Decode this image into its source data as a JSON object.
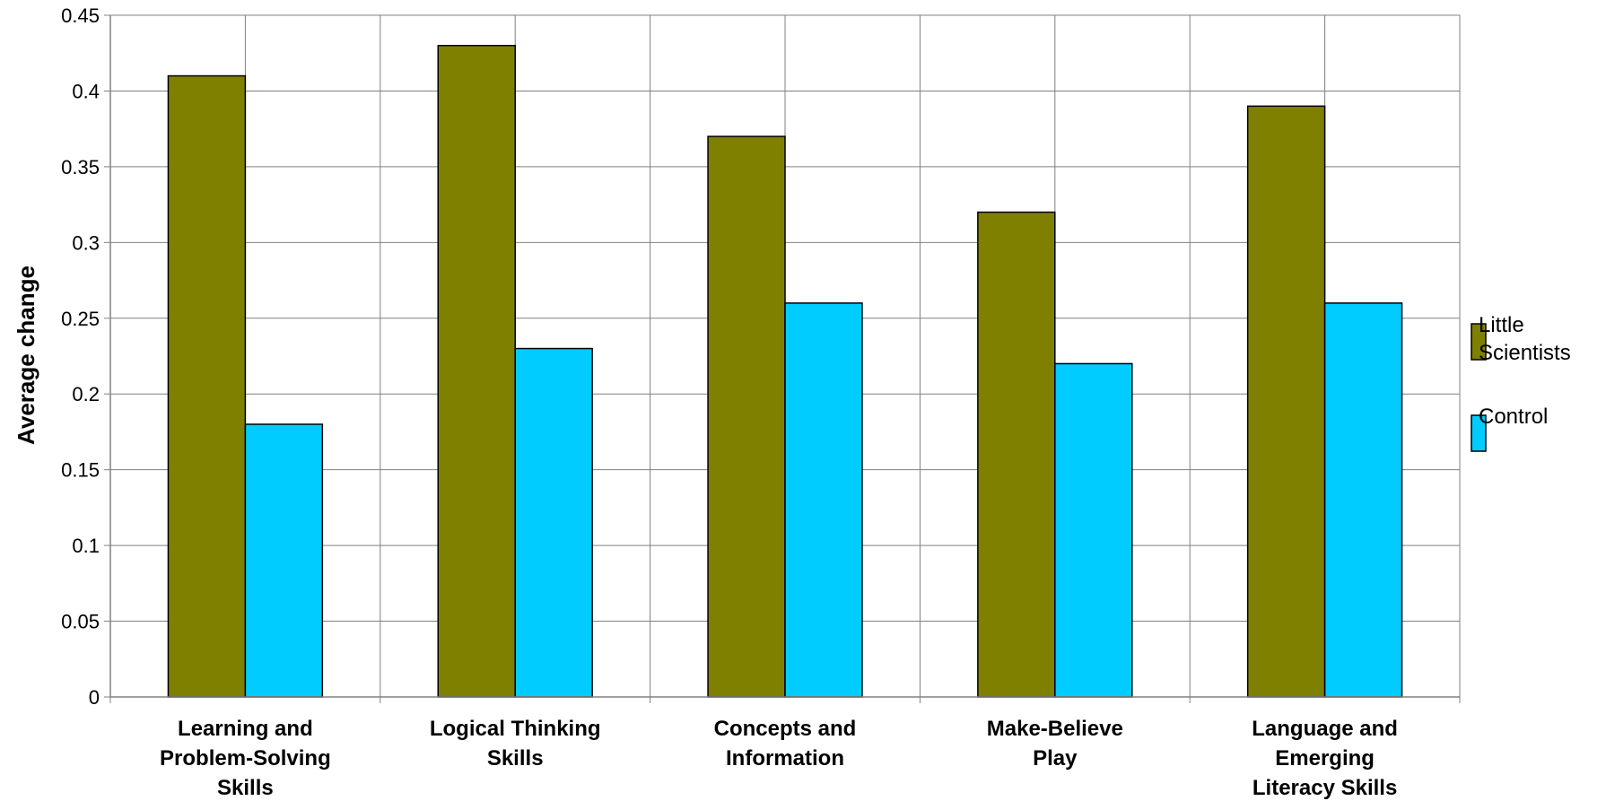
{
  "chart_data": {
    "type": "bar",
    "categories": [
      [
        "Learning and",
        "Problem-Solving",
        "Skills"
      ],
      [
        "Logical Thinking",
        "Skills"
      ],
      [
        "Concepts and",
        "Information"
      ],
      [
        "Make-Believe",
        "Play"
      ],
      [
        "Language and",
        "Emerging",
        "Literacy Skills"
      ]
    ],
    "series": [
      {
        "name": "Little Scientists",
        "name_lines": [
          "Little",
          "Scientists"
        ],
        "color": "#808000",
        "values": [
          0.41,
          0.43,
          0.37,
          0.32,
          0.39
        ]
      },
      {
        "name": "Control",
        "name_lines": [
          "Control"
        ],
        "color": "#00CCFF",
        "values": [
          0.18,
          0.23,
          0.26,
          0.22,
          0.26
        ]
      }
    ],
    "xlabel": "",
    "ylabel": "Average change",
    "ylim": [
      0,
      0.45
    ],
    "yticks": [
      "0",
      "0.05",
      "0.1",
      "0.15",
      "0.2",
      "0.25",
      "0.3",
      "0.35",
      "0.4",
      "0.45"
    ],
    "grid": true,
    "legend": "right"
  }
}
